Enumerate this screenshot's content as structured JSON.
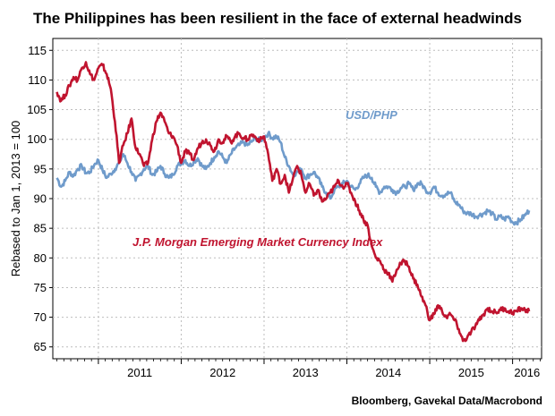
{
  "chart_data": {
    "type": "line",
    "title": "The Philippines has been resilient in the face of external headwinds",
    "ylabel": "Rebased to Jan 1, 2013 = 100",
    "xlabel": "",
    "source": "Bloomberg, Gavekal Data/Macrobond",
    "ylim": [
      63,
      117
    ],
    "yticks": [
      65,
      70,
      75,
      80,
      85,
      90,
      95,
      100,
      105,
      110,
      115
    ],
    "xlim": [
      2010.45,
      2016.35
    ],
    "xticks": [
      "2011",
      "2012",
      "2013",
      "2014",
      "2015",
      "2016"
    ],
    "grid": true,
    "colors": {
      "usdphp": "#6f9bcb",
      "jpm": "#c0142f"
    },
    "series": [
      {
        "name": "USD/PHP",
        "color": "#6f9bcb",
        "x": [
          2010.5,
          2010.55,
          2010.6,
          2010.65,
          2010.7,
          2010.75,
          2010.8,
          2010.85,
          2010.9,
          2010.95,
          2011.0,
          2011.05,
          2011.1,
          2011.15,
          2011.2,
          2011.25,
          2011.3,
          2011.35,
          2011.4,
          2011.45,
          2011.5,
          2011.55,
          2011.6,
          2011.65,
          2011.7,
          2011.75,
          2011.8,
          2011.85,
          2011.9,
          2011.95,
          2012.0,
          2012.05,
          2012.1,
          2012.15,
          2012.2,
          2012.25,
          2012.3,
          2012.35,
          2012.4,
          2012.45,
          2012.5,
          2012.55,
          2012.6,
          2012.65,
          2012.7,
          2012.75,
          2012.8,
          2012.85,
          2012.9,
          2012.95,
          2013.0,
          2013.05,
          2013.1,
          2013.15,
          2013.2,
          2013.25,
          2013.3,
          2013.35,
          2013.4,
          2013.45,
          2013.5,
          2013.55,
          2013.6,
          2013.65,
          2013.7,
          2013.75,
          2013.8,
          2013.85,
          2013.9,
          2013.95,
          2014.0,
          2014.05,
          2014.1,
          2014.15,
          2014.2,
          2014.25,
          2014.3,
          2014.35,
          2014.4,
          2014.45,
          2014.5,
          2014.55,
          2014.6,
          2014.65,
          2014.7,
          2014.75,
          2014.8,
          2014.85,
          2014.9,
          2014.95,
          2015.0,
          2015.05,
          2015.1,
          2015.15,
          2015.2,
          2015.25,
          2015.3,
          2015.35,
          2015.4,
          2015.45,
          2015.5,
          2015.55,
          2015.6,
          2015.65,
          2015.7,
          2015.75,
          2015.8,
          2015.85,
          2015.9,
          2015.95,
          2016.0,
          2016.05,
          2016.1,
          2016.15,
          2016.2
        ],
        "values": [
          93.5,
          92.0,
          93.0,
          94.5,
          93.8,
          95.0,
          95.5,
          94.3,
          94.5,
          95.7,
          96.5,
          94.8,
          93.5,
          94.2,
          95.0,
          96.0,
          97.5,
          96.0,
          94.5,
          93.0,
          94.0,
          95.0,
          95.5,
          94.0,
          94.5,
          95.5,
          94.2,
          93.5,
          94.0,
          95.5,
          96.0,
          96.5,
          95.5,
          96.2,
          96.8,
          95.5,
          95.0,
          96.0,
          97.0,
          98.0,
          97.0,
          96.0,
          97.5,
          98.5,
          99.0,
          99.5,
          99.0,
          99.6,
          100.2,
          99.8,
          100.3,
          101.0,
          100.2,
          100.5,
          99.5,
          97.0,
          95.5,
          94.0,
          94.5,
          95.0,
          93.5,
          94.0,
          94.5,
          93.5,
          92.0,
          91.0,
          90.0,
          91.5,
          92.0,
          92.5,
          93.0,
          92.0,
          91.5,
          92.5,
          93.5,
          94.0,
          93.5,
          92.0,
          91.0,
          92.0,
          92.0,
          91.5,
          91.0,
          91.8,
          92.0,
          92.5,
          91.5,
          92.5,
          92.5,
          91.5,
          91.0,
          92.0,
          91.0,
          90.5,
          90.8,
          91.0,
          89.5,
          89.0,
          88.0,
          87.5,
          87.5,
          87.0,
          87.2,
          87.5,
          88.0,
          87.5,
          86.5,
          87.0,
          86.5,
          87.0,
          86.0,
          86.0,
          86.5,
          87.2,
          88.0
        ],
        "label_text": "USD/PHP"
      },
      {
        "name": "J.P. Morgan Emerging Market Currency Index",
        "color": "#c0142f",
        "x": [
          2010.5,
          2010.55,
          2010.6,
          2010.65,
          2010.7,
          2010.75,
          2010.8,
          2010.85,
          2010.9,
          2010.95,
          2011.0,
          2011.05,
          2011.1,
          2011.15,
          2011.2,
          2011.25,
          2011.3,
          2011.35,
          2011.4,
          2011.45,
          2011.5,
          2011.55,
          2011.6,
          2011.65,
          2011.7,
          2011.75,
          2011.8,
          2011.85,
          2011.9,
          2011.95,
          2012.0,
          2012.05,
          2012.1,
          2012.15,
          2012.2,
          2012.25,
          2012.3,
          2012.35,
          2012.4,
          2012.45,
          2012.5,
          2012.55,
          2012.6,
          2012.65,
          2012.7,
          2012.75,
          2012.8,
          2012.85,
          2012.9,
          2012.95,
          2013.0,
          2013.05,
          2013.1,
          2013.15,
          2013.2,
          2013.25,
          2013.3,
          2013.35,
          2013.4,
          2013.45,
          2013.5,
          2013.55,
          2013.6,
          2013.65,
          2013.7,
          2013.75,
          2013.8,
          2013.85,
          2013.9,
          2013.95,
          2014.0,
          2014.05,
          2014.1,
          2014.15,
          2014.2,
          2014.25,
          2014.3,
          2014.35,
          2014.4,
          2014.45,
          2014.5,
          2014.55,
          2014.6,
          2014.65,
          2014.7,
          2014.75,
          2014.8,
          2014.85,
          2014.9,
          2014.95,
          2015.0,
          2015.05,
          2015.1,
          2015.15,
          2015.2,
          2015.25,
          2015.3,
          2015.35,
          2015.4,
          2015.45,
          2015.5,
          2015.55,
          2015.6,
          2015.65,
          2015.7,
          2015.75,
          2015.8,
          2015.85,
          2015.9,
          2015.95,
          2016.0,
          2016.05,
          2016.1,
          2016.15,
          2016.2
        ],
        "values": [
          108.0,
          106.5,
          107.5,
          109.0,
          110.5,
          110.0,
          112.0,
          113.0,
          111.0,
          110.0,
          112.0,
          112.5,
          111.0,
          108.5,
          103.0,
          96.0,
          99.0,
          101.0,
          103.5,
          98.5,
          97.5,
          95.5,
          96.0,
          100.0,
          103.0,
          104.5,
          103.0,
          101.0,
          100.5,
          99.0,
          96.0,
          98.0,
          97.5,
          96.5,
          98.5,
          99.5,
          100.0,
          99.0,
          98.0,
          100.0,
          99.5,
          100.5,
          99.5,
          100.5,
          101.0,
          100.2,
          100.0,
          100.8,
          100.3,
          99.8,
          100.5,
          97.5,
          93.0,
          95.0,
          92.5,
          94.0,
          91.0,
          93.5,
          95.5,
          94.0,
          91.0,
          92.5,
          90.5,
          91.5,
          89.5,
          90.0,
          91.0,
          92.0,
          93.0,
          92.0,
          92.5,
          91.0,
          89.5,
          88.0,
          86.5,
          85.5,
          82.0,
          80.0,
          79.5,
          78.0,
          77.5,
          76.0,
          78.0,
          79.0,
          79.5,
          78.5,
          76.5,
          75.5,
          73.5,
          72.0,
          69.5,
          70.5,
          72.0,
          71.0,
          70.0,
          70.5,
          69.5,
          68.0,
          66.0,
          66.5,
          67.5,
          68.5,
          69.5,
          70.5,
          71.5,
          71.0,
          70.8,
          71.2,
          71.5,
          71.0,
          70.8,
          71.0,
          71.5,
          71.2,
          71.0
        ],
        "label_text": "J.P. Morgan Emerging Market Currency Index"
      }
    ]
  }
}
